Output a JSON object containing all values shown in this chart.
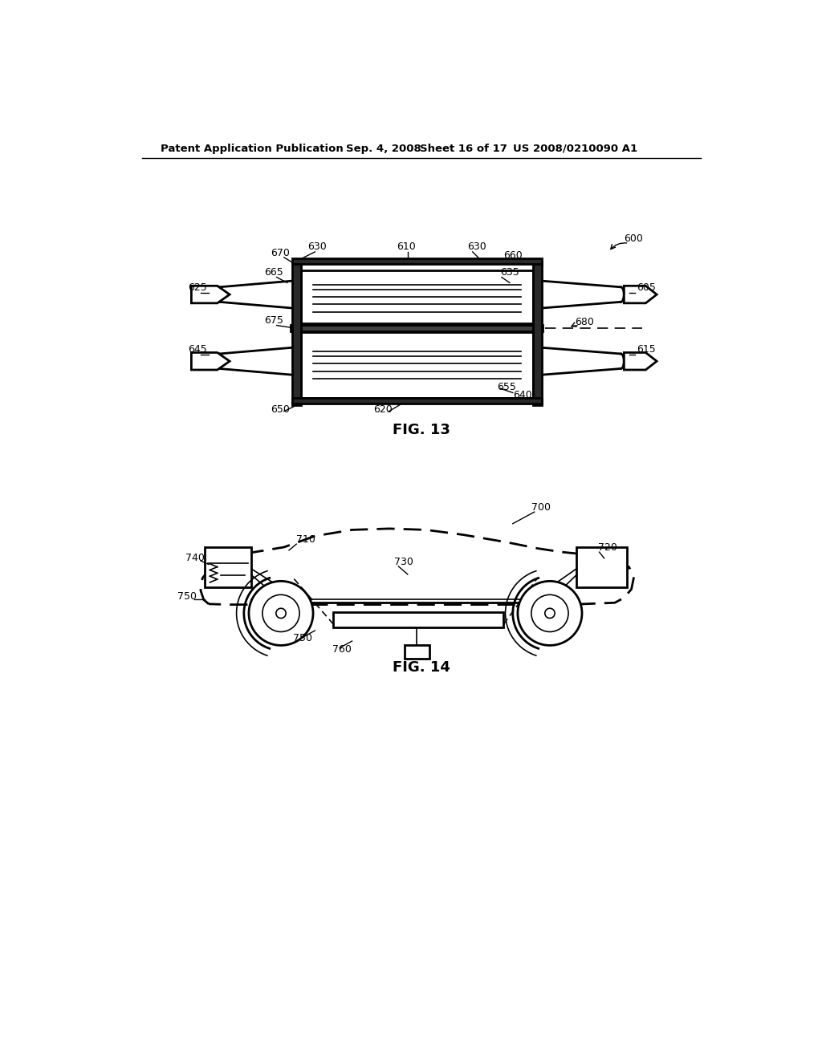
{
  "bg_color": "#ffffff",
  "header_text": "Patent Application Publication",
  "header_date": "Sep. 4, 2008",
  "header_sheet": "Sheet 16 of 17",
  "header_patent": "US 2008/0210090 A1",
  "fig13_caption": "FIG. 13",
  "fig14_caption": "FIG. 14",
  "line_color": "#000000"
}
